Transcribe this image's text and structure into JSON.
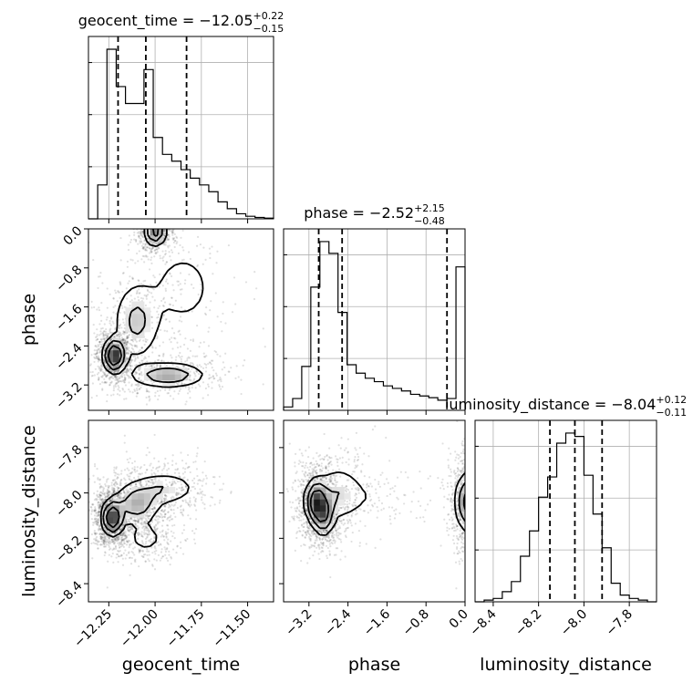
{
  "chart_data": {
    "type": "corner",
    "parameters": [
      "geocent_time",
      "phase",
      "luminosity_distance"
    ],
    "titles": {
      "geocent_time": {
        "prefix": "geocent_time = ",
        "median": "−12.05",
        "plus": "+0.22",
        "minus": "−0.15"
      },
      "phase": {
        "prefix": "phase = ",
        "median": "−2.52",
        "plus": "+2.15",
        "minus": "−0.48"
      },
      "luminosity_distance": {
        "prefix": "luminosity_distance = ",
        "median": "−8.04",
        "plus": "+0.12",
        "minus": "−0.11"
      }
    },
    "ranges": {
      "geocent_time": [
        -12.36,
        -11.36
      ],
      "phase": [
        -3.72,
        0.0
      ],
      "luminosity_distance": [
        -8.48,
        -7.68
      ]
    },
    "ticks": {
      "geocent_time": {
        "values": [
          -12.25,
          -12.0,
          -11.75,
          -11.5
        ],
        "labels": [
          "−12.25",
          "−12.00",
          "−11.75",
          "−11.50"
        ]
      },
      "phase": {
        "values": [
          -3.2,
          -2.4,
          -1.6,
          -0.8,
          0.0
        ],
        "labels": [
          "−3.2",
          "−2.4",
          "−1.6",
          "−0.8",
          "0.0"
        ]
      },
      "luminosity_distance": {
        "values": [
          -8.4,
          -8.2,
          -8.0,
          -7.8
        ],
        "labels": [
          "−8.4",
          "−8.2",
          "−8.0",
          "−7.8"
        ]
      }
    },
    "quantiles": {
      "geocent_time": [
        -12.2,
        -12.05,
        -11.83
      ],
      "phase": [
        -3.0,
        -2.52,
        -0.37
      ],
      "luminosity_distance": [
        -8.15,
        -8.04,
        -7.92
      ]
    },
    "histograms": {
      "geocent_time": [
        0.0,
        0.2,
        1.0,
        0.78,
        0.68,
        0.68,
        0.88,
        0.48,
        0.38,
        0.34,
        0.29,
        0.24,
        0.2,
        0.16,
        0.1,
        0.06,
        0.03,
        0.015,
        0.008,
        0.004
      ],
      "phase": [
        0.02,
        0.07,
        0.26,
        0.73,
        1.0,
        0.93,
        0.58,
        0.27,
        0.22,
        0.19,
        0.17,
        0.145,
        0.13,
        0.115,
        0.095,
        0.085,
        0.075,
        0.06,
        0.07,
        0.85
      ],
      "luminosity_distance": [
        0.0,
        0.01,
        0.02,
        0.06,
        0.12,
        0.27,
        0.42,
        0.62,
        0.74,
        0.94,
        1.0,
        0.98,
        0.75,
        0.52,
        0.32,
        0.11,
        0.04,
        0.02,
        0.01,
        0.0
      ]
    },
    "pairs": [
      {
        "x": "geocent_time",
        "y": "phase",
        "modes": [
          {
            "x": -12.22,
            "y": -2.6,
            "sx": 0.03,
            "sy": 0.18,
            "w": 1.0
          },
          {
            "x": -12.0,
            "y": -0.05,
            "sx": 0.03,
            "sy": 0.15,
            "w": 0.7
          },
          {
            "x": -11.93,
            "y": -3.0,
            "sx": 0.11,
            "sy": 0.14,
            "w": 0.5
          },
          {
            "x": -12.1,
            "y": -1.9,
            "sx": 0.07,
            "sy": 0.45,
            "w": 0.35
          },
          {
            "x": -11.85,
            "y": -1.2,
            "sx": 0.12,
            "sy": 0.55,
            "w": 0.18
          }
        ]
      },
      {
        "x": "geocent_time",
        "y": "luminosity_distance",
        "modes": [
          {
            "x": -12.23,
            "y": -8.11,
            "sx": 0.03,
            "sy": 0.04,
            "w": 1.0
          },
          {
            "x": -12.1,
            "y": -8.05,
            "sx": 0.07,
            "sy": 0.05,
            "w": 0.45
          },
          {
            "x": -11.95,
            "y": -7.98,
            "sx": 0.1,
            "sy": 0.04,
            "w": 0.3
          },
          {
            "x": -12.05,
            "y": -8.2,
            "sx": 0.06,
            "sy": 0.04,
            "w": 0.2
          }
        ]
      },
      {
        "x": "phase",
        "y": "luminosity_distance",
        "modes": [
          {
            "x": -3.05,
            "y": -8.04,
            "sx": 0.12,
            "sy": 0.05,
            "w": 1.0
          },
          {
            "x": -2.9,
            "y": -8.1,
            "sx": 0.12,
            "sy": 0.05,
            "w": 0.7
          },
          {
            "x": -2.6,
            "y": -8.0,
            "sx": 0.3,
            "sy": 0.07,
            "w": 0.35
          },
          {
            "x": 0.0,
            "y": -8.04,
            "sx": 0.1,
            "sy": 0.07,
            "w": 0.8
          },
          {
            "x": -1.6,
            "y": -8.02,
            "sx": 0.7,
            "sy": 0.05,
            "w": 0.12
          }
        ]
      }
    ],
    "contour_levels": [
      0.12,
      0.3,
      0.55
    ],
    "grid": true
  }
}
